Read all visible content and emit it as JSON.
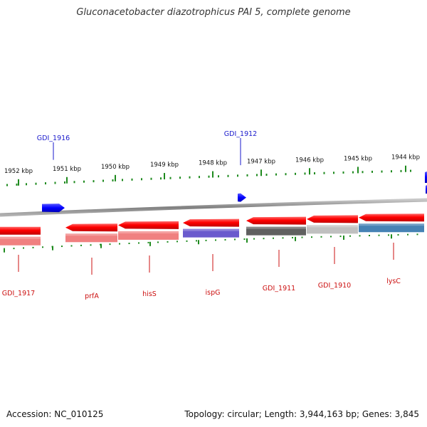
{
  "title": "Gluconacetobacter diazotrophicus PAI 5, complete genome",
  "accession": "Accession: NC_010125",
  "topology": "Topology: circular; Length: 3,944,163 bp; Genes: 3,845",
  "colors": {
    "forward_gene": "#1c1cff",
    "reverse_gene": "#e80000",
    "forward_label": "#1a1acc",
    "reverse_label": "#cc1010",
    "tick": "#1e8a1e",
    "axis": "#888888"
  },
  "scale": {
    "unit": "kbp",
    "ticks": [
      {
        "label": "1952 kbp"
      },
      {
        "label": "1951 kbp"
      },
      {
        "label": "1950 kbp"
      },
      {
        "label": "1949 kbp"
      },
      {
        "label": "1948 kbp"
      },
      {
        "label": "1947 kbp"
      },
      {
        "label": "1946 kbp"
      },
      {
        "label": "1945 kbp"
      },
      {
        "label": "1944 kbp"
      }
    ]
  },
  "forward_genes": [
    {
      "label": "GDI_1916"
    },
    {
      "label": "GDI_1912"
    }
  ],
  "reverse_genes": [
    {
      "label": "GDI_1917",
      "category_color": "#f08080"
    },
    {
      "label": "prfA",
      "category_color": "#f08080"
    },
    {
      "label": "hisS",
      "category_color": "#f08080"
    },
    {
      "label": "ispG",
      "category_color": "#6a5acd"
    },
    {
      "label": "GDI_1911",
      "category_color": "#606060"
    },
    {
      "label": "GDI_1910",
      "category_color": "#c0c0c0"
    },
    {
      "label": "lysC",
      "category_color": "#4682b4"
    }
  ]
}
